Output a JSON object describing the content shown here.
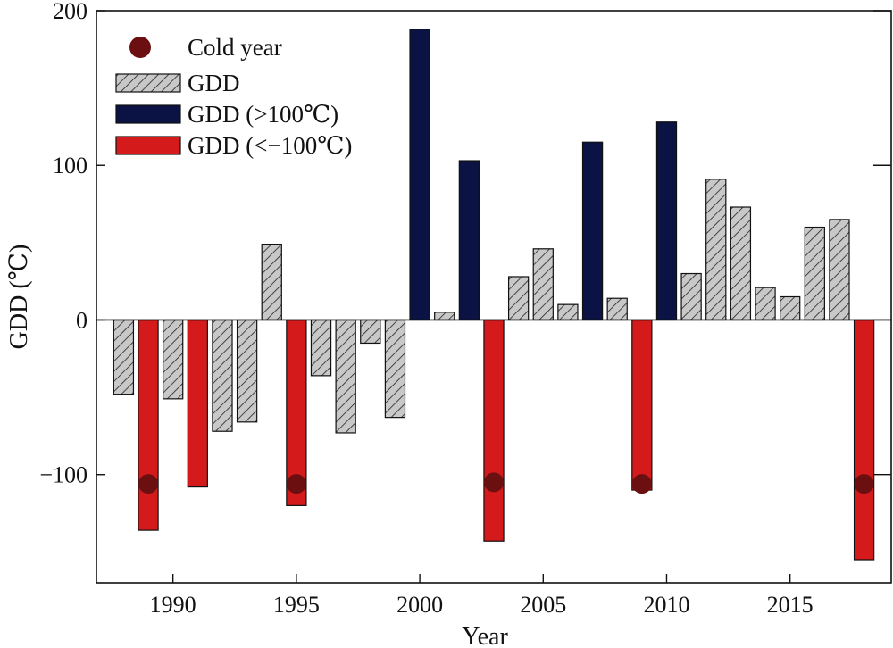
{
  "chart_data": {
    "type": "bar",
    "xlabel": "Year",
    "ylabel": "GDD (℃)",
    "ylim": [
      -170,
      200
    ],
    "xlim": [
      1986.9,
      2019.1
    ],
    "yticks": [
      200,
      100,
      0,
      -100
    ],
    "yticks_text": [
      "200",
      "100",
      "0",
      "−100"
    ],
    "xticks": [
      "1990",
      "1995",
      "2000",
      "2005",
      "2010",
      "2015"
    ],
    "legend_position": "top-left",
    "legend": [
      {
        "label": "Cold year",
        "kind": "marker"
      },
      {
        "label": "GDD",
        "kind": "hatched"
      },
      {
        "label": "GDD (>100℃)",
        "kind": "navy"
      },
      {
        "label": "GDD (<−100℃)",
        "kind": "red"
      }
    ],
    "colors": {
      "gdd_fill": "#c8c8c8",
      "gdd_hatch": "#222222",
      "high": "#0b1244",
      "low": "#d41a1a",
      "cold_marker": "#6b0f10"
    },
    "bars": [
      {
        "year": 1988,
        "value": -48,
        "kind": "gdd"
      },
      {
        "year": 1989,
        "value": -136,
        "kind": "low"
      },
      {
        "year": 1990,
        "value": -51,
        "kind": "gdd"
      },
      {
        "year": 1991,
        "value": -108,
        "kind": "low"
      },
      {
        "year": 1992,
        "value": -72,
        "kind": "gdd"
      },
      {
        "year": 1993,
        "value": -66,
        "kind": "gdd"
      },
      {
        "year": 1994,
        "value": 49,
        "kind": "gdd"
      },
      {
        "year": 1995,
        "value": -120,
        "kind": "low"
      },
      {
        "year": 1996,
        "value": -36,
        "kind": "gdd"
      },
      {
        "year": 1997,
        "value": -73,
        "kind": "gdd"
      },
      {
        "year": 1998,
        "value": -15,
        "kind": "gdd"
      },
      {
        "year": 1999,
        "value": -63,
        "kind": "gdd"
      },
      {
        "year": 2000,
        "value": 188,
        "kind": "high"
      },
      {
        "year": 2001,
        "value": 5,
        "kind": "gdd"
      },
      {
        "year": 2002,
        "value": 103,
        "kind": "high"
      },
      {
        "year": 2003,
        "value": -143,
        "kind": "low"
      },
      {
        "year": 2004,
        "value": 28,
        "kind": "gdd"
      },
      {
        "year": 2005,
        "value": 46,
        "kind": "gdd"
      },
      {
        "year": 2006,
        "value": 10,
        "kind": "gdd"
      },
      {
        "year": 2007,
        "value": 115,
        "kind": "high"
      },
      {
        "year": 2008,
        "value": 14,
        "kind": "gdd"
      },
      {
        "year": 2009,
        "value": -110,
        "kind": "low"
      },
      {
        "year": 2010,
        "value": 128,
        "kind": "high"
      },
      {
        "year": 2011,
        "value": 30,
        "kind": "gdd"
      },
      {
        "year": 2012,
        "value": 91,
        "kind": "gdd"
      },
      {
        "year": 2013,
        "value": 73,
        "kind": "gdd"
      },
      {
        "year": 2014,
        "value": 21,
        "kind": "gdd"
      },
      {
        "year": 2015,
        "value": 15,
        "kind": "gdd"
      },
      {
        "year": 2016,
        "value": 60,
        "kind": "gdd"
      },
      {
        "year": 2017,
        "value": 65,
        "kind": "gdd"
      },
      {
        "year": 2018,
        "value": -155,
        "kind": "low"
      }
    ],
    "cold_years": [
      {
        "year": 1989,
        "value": -106
      },
      {
        "year": 1995,
        "value": -106
      },
      {
        "year": 2003,
        "value": -105
      },
      {
        "year": 2009,
        "value": -106
      },
      {
        "year": 2018,
        "value": -106
      }
    ]
  }
}
